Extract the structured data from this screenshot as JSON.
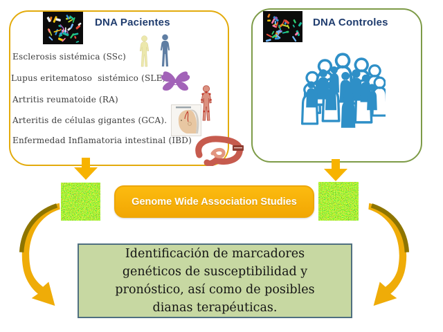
{
  "patients_box": {
    "title": "DNA Pacientes",
    "image": "karyotype-image",
    "diseases": [
      {
        "label": "Esclerosis sistémica (SSc)",
        "icon": "patient-silhouettes-icon"
      },
      {
        "label": "Lupus eritematoso  sistémico (SLE)",
        "icon": "lupus-butterfly-icon"
      },
      {
        "label": "Artritis reumatoide (RA)",
        "icon": "arthritis-figure-icon"
      },
      {
        "label": "Arteritis de células gigantes (GCA).",
        "icon": "giant-cell-arteritis-head-icon"
      },
      {
        "label": "Enfermedad Inflamatoria intestinal (IBD)",
        "icon": "intestine-icon"
      }
    ]
  },
  "controls_box": {
    "title": "DNA Controles",
    "image": "karyotype-image",
    "icon": "crowd-icon"
  },
  "gwas_button": {
    "label": "Genome Wide Association Studies",
    "left_image": "microarray-image",
    "right_image": "microarray-image"
  },
  "result_box": {
    "text": "Identificación de marcadores genéticos de susceptibilidad y pronóstico, así como de posibles dianas terapéuticas."
  },
  "arrows": {
    "patients_down": "down-arrow-icon",
    "controls_down": "down-arrow-icon",
    "left_curved": "curved-arrow-icon",
    "right_curved": "curved-arrow-icon"
  },
  "colors": {
    "patients_border_gold": "#E3AB0C",
    "controls_border_olive": "#7D9B47",
    "title_navy": "#1F3C6E",
    "body_text": "#3C3C3C",
    "arrow_gold": "#F7B300",
    "gwas_fill": "#F6AD08",
    "gwas_text": "#FFFFFF",
    "result_fill": "#C7D8A2",
    "result_border": "#4F6F80",
    "crowd_blue": "#2E8FC7",
    "butterfly_purple": "#A263B8"
  }
}
